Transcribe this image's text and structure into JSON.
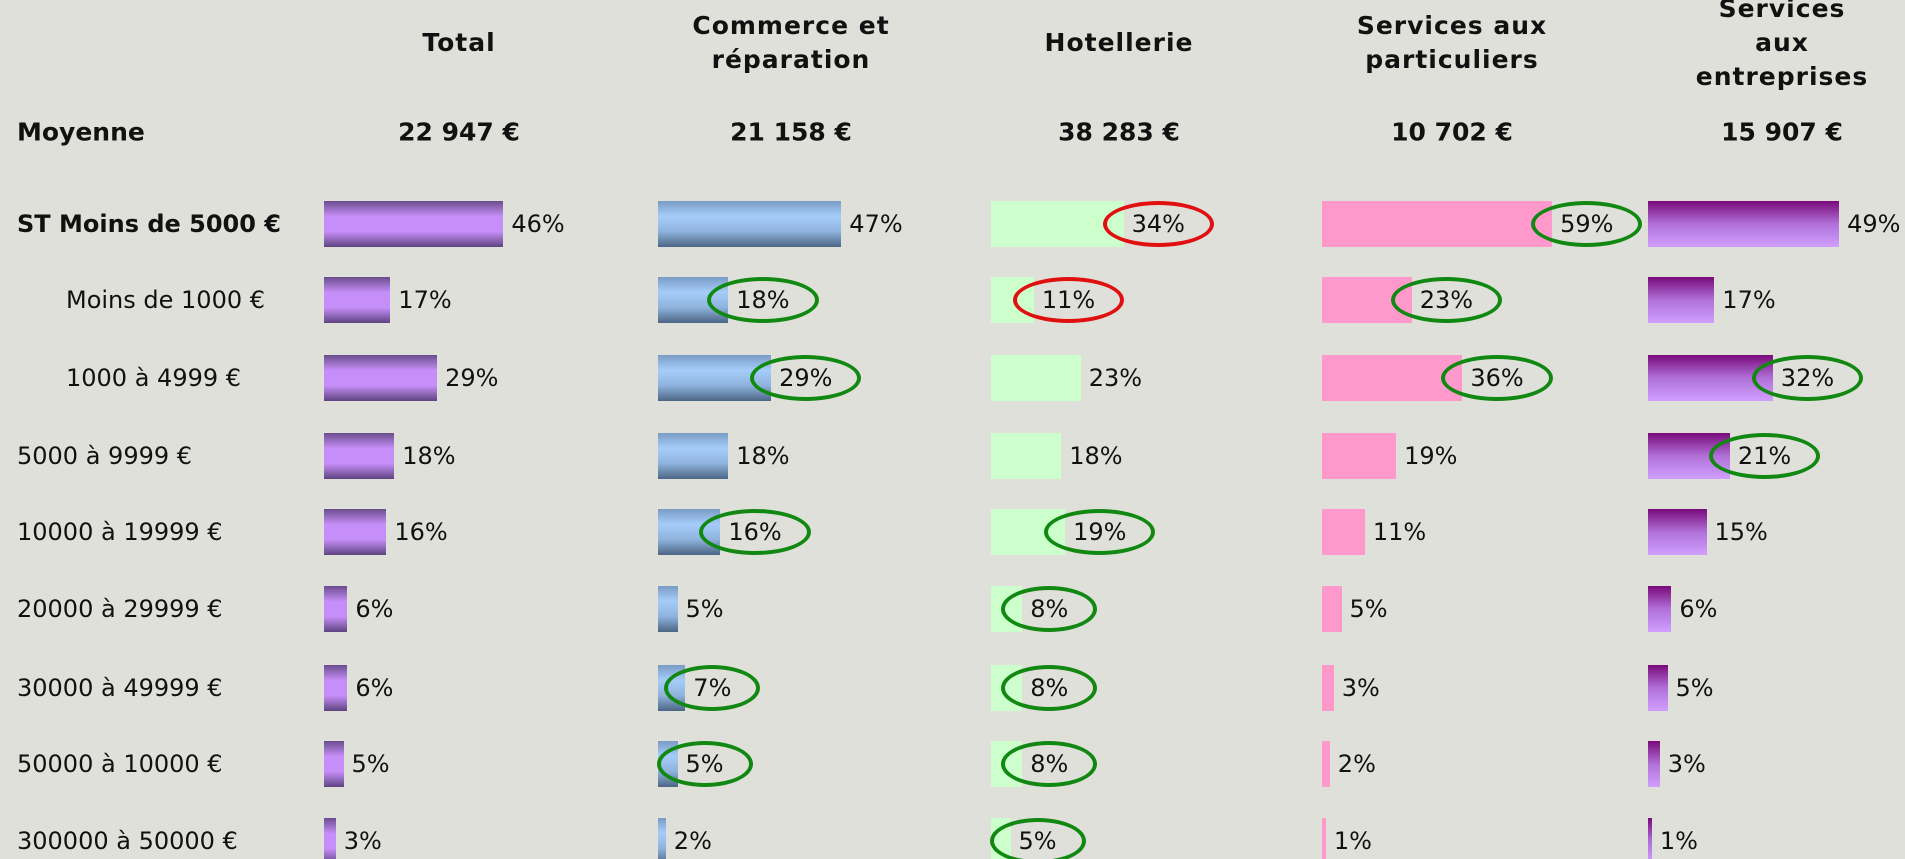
{
  "row_header": "Moyenne",
  "categories": [
    "ST Moins de 5000 €",
    "Moins de 1000 €",
    "1000 à 4999 €",
    "5000 à 9999 €",
    "10000 à 19999 €",
    "20000 à 29999 €",
    "30000 à 49999 €",
    "50000 à 10000 €",
    "300000 à 50000 €"
  ],
  "chart_data": [
    {
      "type": "bar",
      "orientation": "horizontal",
      "title": "Total",
      "mean": "22 947 €",
      "values": [
        46,
        17,
        29,
        18,
        16,
        6,
        6,
        5,
        3
      ],
      "value_labels": [
        "46%",
        "17%",
        "29%",
        "18%",
        "16%",
        "6%",
        "6%",
        "5%",
        "3%"
      ],
      "colors": [
        "#6a4d8c",
        "#c68ef8",
        "#c68ef8",
        "#5e4480"
      ],
      "circled": [
        null,
        null,
        null,
        null,
        null,
        null,
        null,
        null,
        null
      ]
    },
    {
      "type": "bar",
      "orientation": "horizontal",
      "title": "Commerce et\nréparation",
      "mean": "21 158 €",
      "values": [
        47,
        18,
        29,
        18,
        16,
        5,
        7,
        5,
        2
      ],
      "value_labels": [
        "47%",
        "18%",
        "29%",
        "18%",
        "16%",
        "5%",
        "7%",
        "5%",
        "2%"
      ],
      "colors": [
        "#7a9cc6",
        "#a6cdfa",
        "#8eb2dc",
        "#4c6684"
      ],
      "circled": [
        null,
        "#118811",
        "#118811",
        null,
        "#118811",
        null,
        "#118811",
        "#118811",
        null
      ]
    },
    {
      "type": "bar",
      "orientation": "horizontal",
      "title": "Hotellerie",
      "mean": "38 283 €",
      "values": [
        34,
        11,
        23,
        18,
        19,
        8,
        8,
        8,
        5
      ],
      "value_labels": [
        "34%",
        "11%",
        "23%",
        "18%",
        "19%",
        "8%",
        "8%",
        "8%",
        "5%"
      ],
      "colors": [
        "#ccffcc",
        "#ccffcc"
      ],
      "circled": [
        "#e01010",
        "#e01010",
        null,
        null,
        "#118811",
        "#118811",
        "#118811",
        "#118811",
        "#118811"
      ]
    },
    {
      "type": "bar",
      "orientation": "horizontal",
      "title": "Services aux\nparticuliers",
      "mean": "10 702 €",
      "values": [
        59,
        23,
        36,
        19,
        11,
        5,
        3,
        2,
        1
      ],
      "value_labels": [
        "59%",
        "23%",
        "36%",
        "19%",
        "11%",
        "5%",
        "3%",
        "2%",
        "1%"
      ],
      "colors": [
        "#ff99cc",
        "#ff99cc"
      ],
      "circled": [
        "#118811",
        "#118811",
        "#118811",
        null,
        null,
        null,
        null,
        null,
        null
      ]
    },
    {
      "type": "bar",
      "orientation": "horizontal",
      "title": "Services aux\nentreprises",
      "mean": "15 907 €",
      "values": [
        49,
        17,
        32,
        21,
        15,
        6,
        5,
        3,
        1
      ],
      "value_labels": [
        "49%",
        "17%",
        "32%",
        "21%",
        "15%",
        "6%",
        "5%",
        "3%",
        "1%"
      ],
      "colors": [
        "#7a0a7a",
        "#b070d8",
        "#d0a0ff"
      ],
      "circled": [
        null,
        null,
        "#118811",
        "#118811",
        null,
        null,
        null,
        null,
        null
      ]
    }
  ]
}
